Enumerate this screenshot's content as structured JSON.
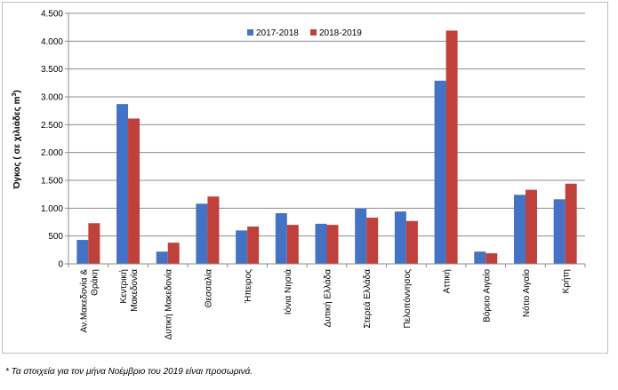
{
  "chart_data": {
    "type": "bar",
    "title": "",
    "ylabel": "Όγκος ( σε χιλιάδες m³)",
    "ylabel_parts": {
      "main": "Όγκος ( σε χιλιάδες  m",
      "sup": "3",
      "end": ")"
    },
    "ylim": [
      0,
      4500
    ],
    "yticks": [
      0,
      500,
      1000,
      1500,
      2000,
      2500,
      3000,
      3500,
      4000,
      4500
    ],
    "ytick_labels": [
      "0",
      "500",
      "1.000",
      "1.500",
      "2.000",
      "2.500",
      "3.000",
      "3.500",
      "4.000",
      "4.500"
    ],
    "grid": true,
    "legend": "top-center",
    "categories": [
      [
        "Αν.Μακεδονία &",
        "Θράκη"
      ],
      [
        "Κεντρική",
        "Μακεδονία"
      ],
      [
        "Δυτική Μακεδονία"
      ],
      [
        "Θεσσαλία"
      ],
      [
        "Ήπειρος"
      ],
      [
        "Ιόνια Νησιά"
      ],
      [
        "Δυτική Ελλάδα"
      ],
      [
        "Στερεά Ελλάδα"
      ],
      [
        "Πελοπόννησος"
      ],
      [
        "Αττική"
      ],
      [
        "Βόρειο Αιγαίο"
      ],
      [
        "Νότιο Αιγαίο"
      ],
      [
        "Κρήτη"
      ]
    ],
    "series": [
      {
        "name": "2017-2018",
        "color": "#4472c4",
        "values": [
          430,
          2870,
          220,
          1080,
          600,
          910,
          720,
          990,
          940,
          3290,
          220,
          1240,
          1160
        ]
      },
      {
        "name": "2018-2019",
        "color": "#c0403c",
        "values": [
          730,
          2610,
          380,
          1210,
          670,
          700,
          700,
          830,
          770,
          4190,
          190,
          1330,
          1440
        ]
      }
    ]
  },
  "footnote": "* Τα στοιχεία για τον μήνα Νοέμβριο του 2019  είναι προσωρινά."
}
